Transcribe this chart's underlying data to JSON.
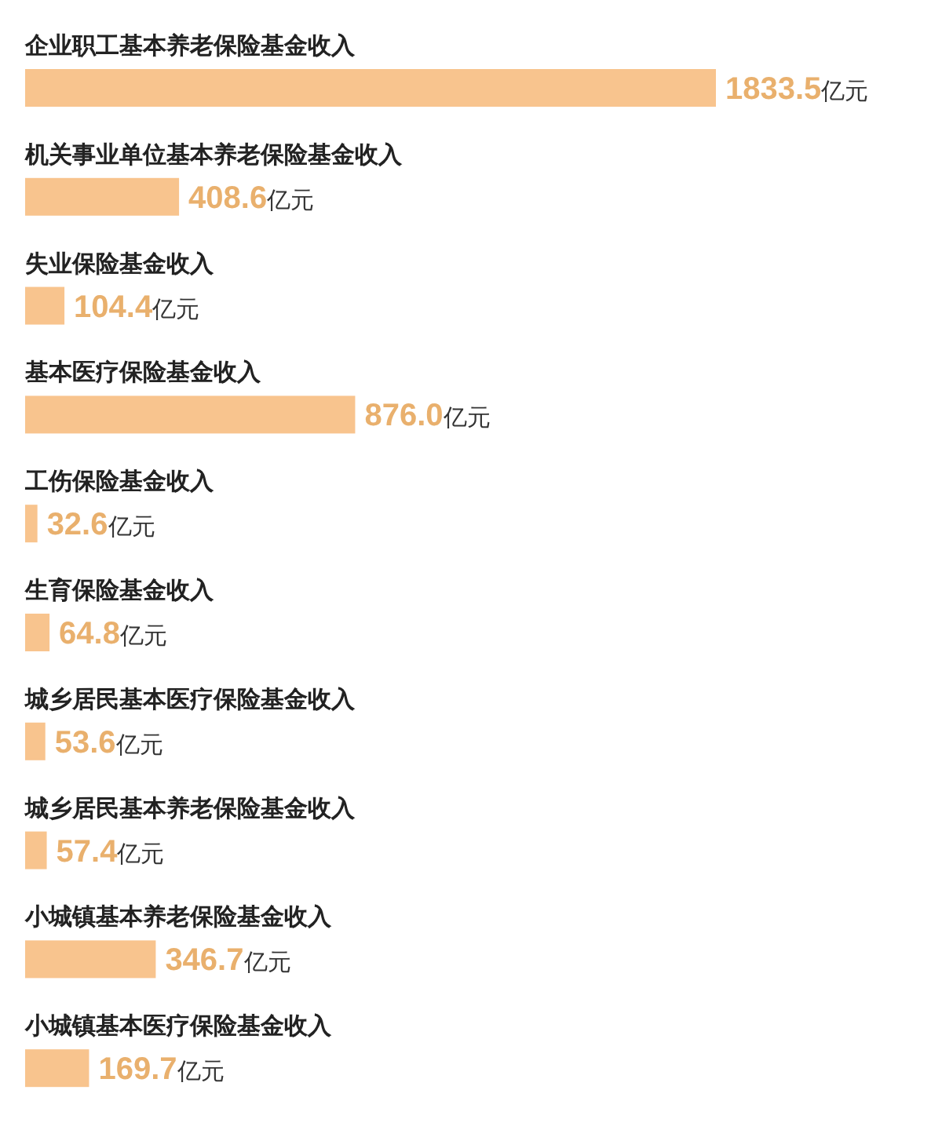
{
  "chart_data": {
    "type": "bar",
    "orientation": "horizontal",
    "categories": [
      "企业职工基本养老保险基金收入",
      "机关事业单位基本养老保险基金收入",
      "失业保险基金收入",
      "基本医疗保险基金收入",
      "工伤保险基金收入",
      "生育保险基金收入",
      "城乡居民基本医疗保险基金收入",
      "城乡居民基本养老保险基金收入",
      "小城镇基本养老保险基金收入",
      "小城镇基本医疗保险基金收入"
    ],
    "values": [
      1833.5,
      408.6,
      104.4,
      876.0,
      32.6,
      64.8,
      53.6,
      57.4,
      346.7,
      169.7
    ],
    "value_labels": [
      "1833.5亿元",
      "408.6亿元",
      "104.4亿元",
      "876.0亿元",
      "32.6亿元",
      "64.8亿元",
      "53.6亿元",
      "57.4亿元",
      "346.7亿元",
      "169.7亿元"
    ],
    "color": "#f8c48e"
  }
}
